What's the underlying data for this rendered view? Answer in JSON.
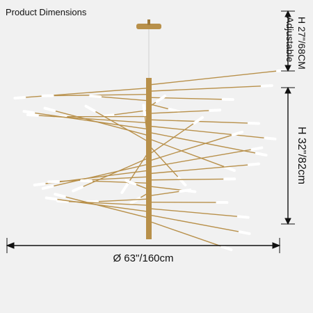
{
  "title": "Product Dimensions",
  "dimensions": {
    "top_height": "H 27\"/68CM",
    "top_note": "Adjustable",
    "body_height": "H 32\"/82cm",
    "diameter": "Ø 63\"/160cm"
  },
  "colors": {
    "background": "#f1f1f1",
    "brass": "#b8904a",
    "light": "#ffffff",
    "dimension_line": "#111111"
  }
}
